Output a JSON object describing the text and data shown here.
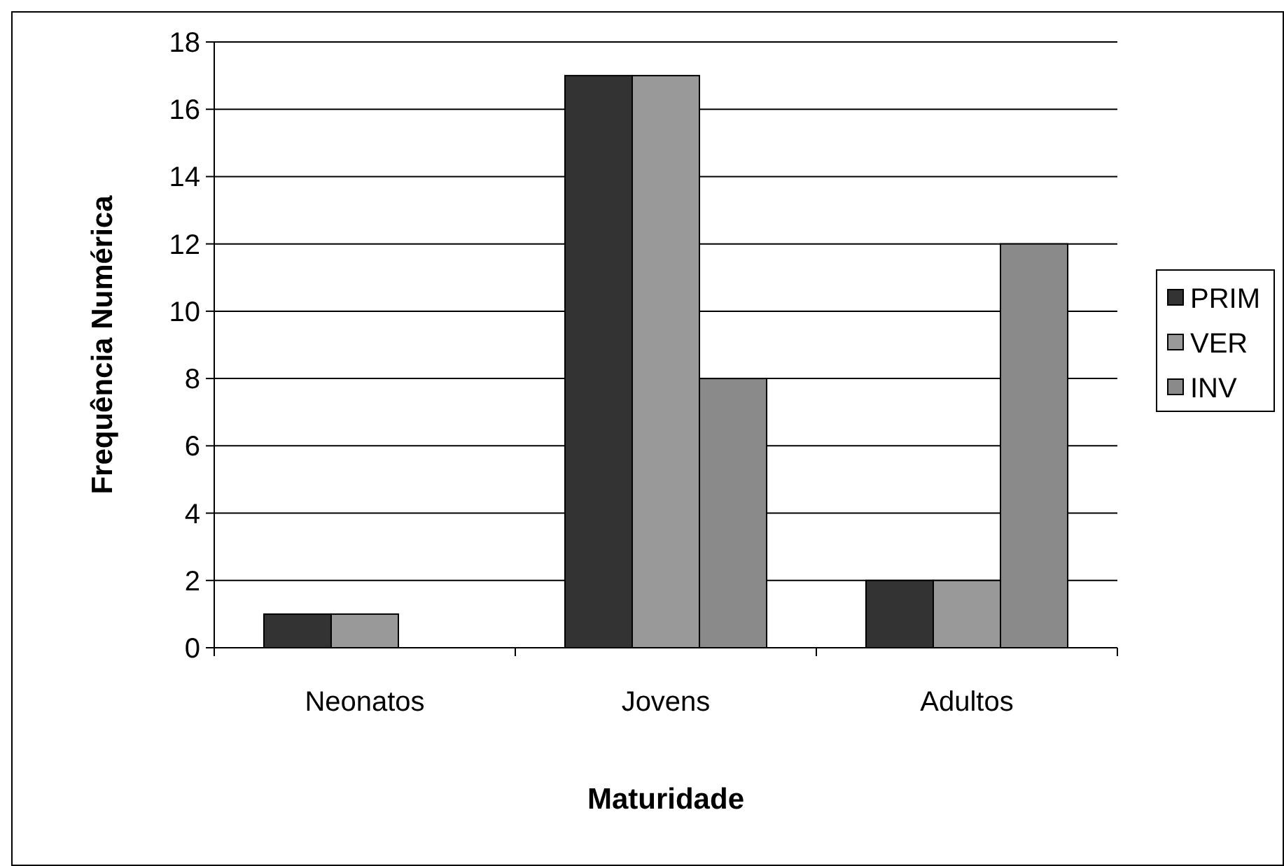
{
  "chart_data": {
    "type": "bar",
    "xlabel": "Maturidade",
    "ylabel": "Frequência Numérica",
    "categories": [
      "Neonatos",
      "Jovens",
      "Adultos"
    ],
    "series": [
      {
        "name": "PRIM",
        "color": "#333333",
        "values": [
          1,
          17,
          2
        ]
      },
      {
        "name": "VER",
        "color": "#999999",
        "values": [
          1,
          17,
          2
        ]
      },
      {
        "name": "INV",
        "color": "#8a8a8a",
        "values": [
          0,
          8,
          12
        ]
      }
    ],
    "ylim": [
      0,
      18
    ],
    "yticks": [
      0,
      2,
      4,
      6,
      8,
      10,
      12,
      14,
      16,
      18
    ],
    "grid": "y",
    "legend": "right"
  }
}
